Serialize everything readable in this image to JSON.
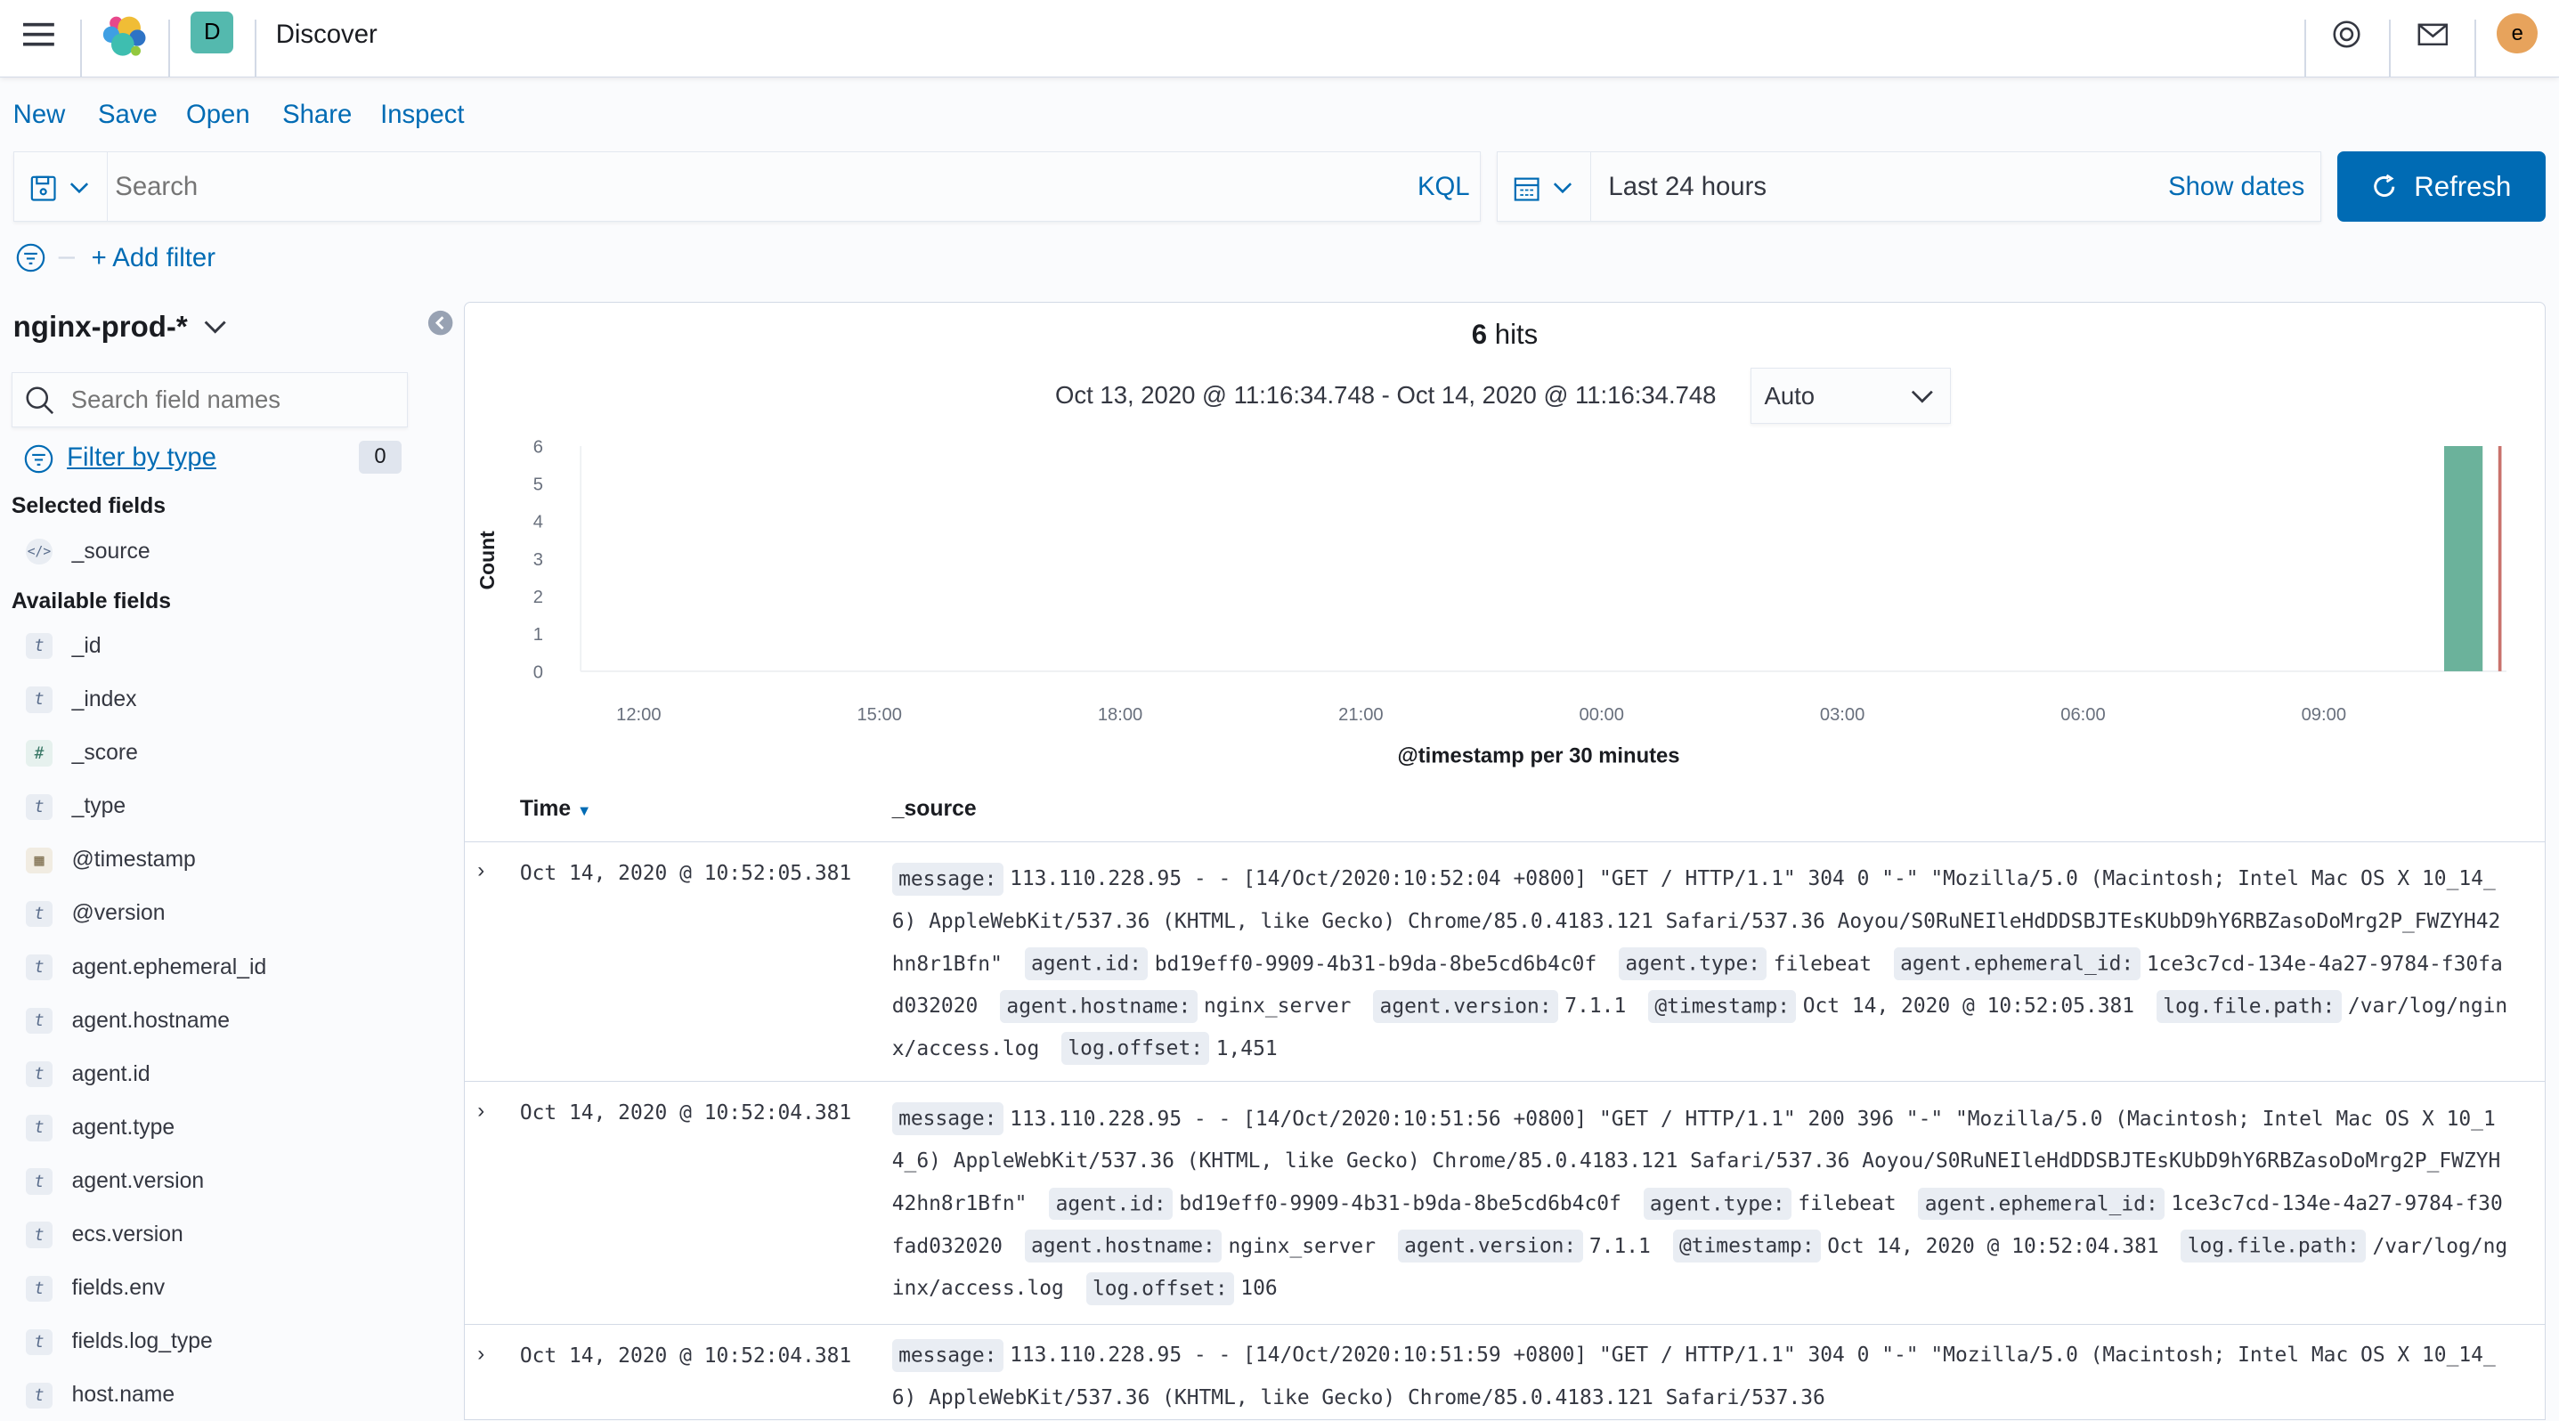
{
  "header": {
    "app_title": "Discover",
    "space_initial": "D",
    "user_initial": "e",
    "icons": [
      "menu-icon",
      "elastic-logo",
      "help-icon",
      "mail-icon"
    ]
  },
  "menu": {
    "new": "New",
    "save": "Save",
    "open": "Open",
    "share": "Share",
    "inspect": "Inspect"
  },
  "query": {
    "placeholder": "Search",
    "language": "KQL"
  },
  "date_picker": {
    "value": "Last 24 hours",
    "show_dates": "Show dates"
  },
  "refresh_label": "Refresh",
  "add_filter": "+ Add filter",
  "sidebar": {
    "index_pattern": "nginx-prod-*",
    "search_placeholder": "Search field names",
    "filter_by_type": "Filter by type",
    "filter_count": "0",
    "selected_heading": "Selected fields",
    "selected": [
      {
        "name": "_source",
        "type": "source"
      }
    ],
    "available_heading": "Available fields",
    "fields": [
      {
        "name": "_id",
        "type": "t"
      },
      {
        "name": "_index",
        "type": "t"
      },
      {
        "name": "_score",
        "type": "#"
      },
      {
        "name": "_type",
        "type": "t"
      },
      {
        "name": "@timestamp",
        "type": "date"
      },
      {
        "name": "@version",
        "type": "t"
      },
      {
        "name": "agent.ephemeral_id",
        "type": "t"
      },
      {
        "name": "agent.hostname",
        "type": "t"
      },
      {
        "name": "agent.id",
        "type": "t"
      },
      {
        "name": "agent.type",
        "type": "t"
      },
      {
        "name": "agent.version",
        "type": "t"
      },
      {
        "name": "ecs.version",
        "type": "t"
      },
      {
        "name": "fields.env",
        "type": "t"
      },
      {
        "name": "fields.log_type",
        "type": "t"
      },
      {
        "name": "host.name",
        "type": "t"
      }
    ]
  },
  "results": {
    "hits_count": "6",
    "hits_label": "hits",
    "range": "Oct 13, 2020 @ 11:16:34.748 - Oct 14, 2020 @ 11:16:34.748",
    "interval": "Auto"
  },
  "chart_data": {
    "type": "bar",
    "ylabel": "Count",
    "xlabel": "@timestamp per 30 minutes",
    "ylim": [
      0,
      6
    ],
    "yticks": [
      "0",
      "1",
      "2",
      "3",
      "4",
      "5",
      "6"
    ],
    "xlim": [
      "2020-10-13 11:16:34.748",
      "2020-10-14 11:16:34.748"
    ],
    "xticks": [
      "12:00",
      "15:00",
      "18:00",
      "21:00",
      "00:00",
      "03:00",
      "06:00",
      "09:00"
    ],
    "bars": [
      {
        "x": "2020-10-14 10:30",
        "value": 6
      }
    ],
    "now_marker": "2020-10-14 11:16:34.748",
    "bar_color": "#6bb29b",
    "marker_color": "#c9726c"
  },
  "table": {
    "columns": [
      "Time",
      "_source"
    ],
    "rows": [
      {
        "time": "Oct 14, 2020 @ 10:52:05.381",
        "source": [
          {
            "k": "message:",
            "v": "113.110.228.95 - - [14/Oct/2020:10:52:04 +0800] \"GET / HTTP/1.1\" 304 0 \"-\" \"Mozilla/5.0 (Macintosh; Intel Mac OS X 10_14_6) AppleWebKit/537.36 (KHTML, like Gecko) Chrome/85.0.4183.121 Safari/537.36 Aoyou/S0RuNEIleHdDDSBJTEsKUbD9hY6RBZasoDoMrg2P_FWZYH42hn8r1Bfn\""
          },
          {
            "k": "agent.id:",
            "v": "bd19eff0-9909-4b31-b9da-8be5cd6b4c0f"
          },
          {
            "k": "agent.type:",
            "v": "filebeat"
          },
          {
            "k": "agent.ephemeral_id:",
            "v": "1ce3c7cd-134e-4a27-9784-f30fad032020"
          },
          {
            "k": "agent.hostname:",
            "v": "nginx_server"
          },
          {
            "k": "agent.version:",
            "v": "7.1.1"
          },
          {
            "k": "@timestamp:",
            "v": "Oct 14, 2020 @ 10:52:05.381"
          },
          {
            "k": "log.file.path:",
            "v": "/var/log/nginx/access.log"
          },
          {
            "k": "log.offset:",
            "v": "1,451"
          }
        ]
      },
      {
        "time": "Oct 14, 2020 @ 10:52:04.381",
        "source": [
          {
            "k": "message:",
            "v": "113.110.228.95 - - [14/Oct/2020:10:51:56 +0800] \"GET / HTTP/1.1\" 200 396 \"-\" \"Mozilla/5.0 (Macintosh; Intel Mac OS X 10_14_6) AppleWebKit/537.36 (KHTML, like Gecko) Chrome/85.0.4183.121 Safari/537.36 Aoyou/S0RuNEIleHdDDSBJTEsKUbD9hY6RBZasoDoMrg2P_FWZYH42hn8r1Bfn\""
          },
          {
            "k": "agent.id:",
            "v": "bd19eff0-9909-4b31-b9da-8be5cd6b4c0f"
          },
          {
            "k": "agent.type:",
            "v": "filebeat"
          },
          {
            "k": "agent.ephemeral_id:",
            "v": "1ce3c7cd-134e-4a27-9784-f30fad032020"
          },
          {
            "k": "agent.hostname:",
            "v": "nginx_server"
          },
          {
            "k": "agent.version:",
            "v": "7.1.1"
          },
          {
            "k": "@timestamp:",
            "v": "Oct 14, 2020 @ 10:52:04.381"
          },
          {
            "k": "log.file.path:",
            "v": "/var/log/nginx/access.log"
          },
          {
            "k": "log.offset:",
            "v": "106"
          }
        ]
      },
      {
        "time": "Oct 14, 2020 @ 10:52:04.381",
        "source": [
          {
            "k": "message:",
            "v": "113.110.228.95 - - [14/Oct/2020:10:51:59 +0800] \"GET / HTTP/1.1\" 304 0 \"-\" \"Mozilla/5.0 (Macintosh; Intel Mac OS X 10_14_6) AppleWebKit/537.36 (KHTML, like Gecko) Chrome/85.0.4183.121 Safari/537.36"
          }
        ]
      }
    ]
  }
}
